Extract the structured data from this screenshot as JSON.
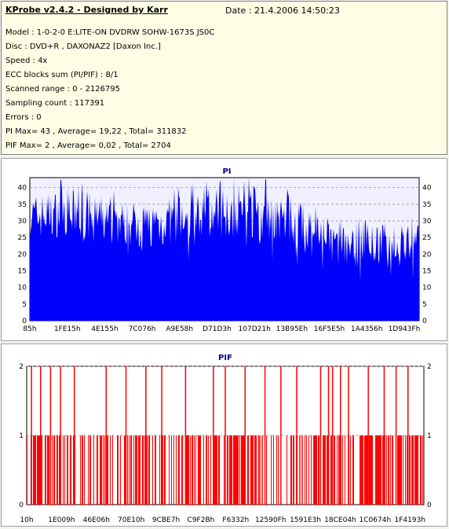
{
  "header": {
    "title": "KProbe v2.4.2 - Designed by Karr",
    "date": "Date : 21.4.2006 14:50:23",
    "lines": [
      "Model : 1-0-2-0 E:LITE-ON DVDRW SOHW-1673S JS0C",
      "Disc : DVD+R , DAXONAZ2 [Daxon Inc.]",
      "Speed : 4x",
      "ECC blocks sum (PI/PIF) : 8/1",
      "Scanned range : 0 - 2126795",
      "Sampling count : 117391",
      "Errors : 0",
      "PI Max= 43 , Average= 19,22 , Total= 311832",
      "PIF Max= 2 , Average= 0,02 , Total= 2704"
    ]
  },
  "colors": {
    "pi_fill": "#0000ff",
    "pif_fill": "#ff0000",
    "title": "#000080",
    "grid": "#8080a0",
    "plot_bg": "#f0f0ff"
  },
  "chart_data": [
    {
      "type": "area",
      "title": "PI",
      "ylim": [
        0,
        43
      ],
      "yticks": [
        0,
        5,
        10,
        15,
        20,
        25,
        30,
        35,
        40
      ],
      "grid": true,
      "xtick_labels": [
        "85h",
        "1FE15h",
        "4E155h",
        "7C076h",
        "A9E58h",
        "D71D3h",
        "107D21h",
        "13B95Eh",
        "16F5E5h",
        "1A4356h",
        "1D943Fh"
      ],
      "series": [
        {
          "x": [
            0,
            0.05,
            0.1,
            0.15,
            0.2,
            0.25,
            0.3,
            0.35,
            0.4,
            0.45,
            0.5,
            0.55,
            0.6,
            0.65,
            0.7,
            0.75,
            0.8,
            0.85,
            0.9,
            0.95,
            1.0
          ],
          "base": [
            24,
            25,
            25,
            24,
            23,
            22,
            22,
            22,
            23,
            24,
            25,
            25,
            24,
            23,
            22,
            18,
            16,
            16,
            17,
            17,
            17
          ],
          "peak": [
            38,
            39,
            40,
            39,
            37,
            36,
            36,
            37,
            38,
            39,
            41,
            41,
            40,
            38,
            36,
            32,
            29,
            28,
            29,
            29,
            29
          ]
        }
      ]
    },
    {
      "type": "bar",
      "title": "PIF",
      "ylim": [
        0,
        2
      ],
      "yticks": [
        0,
        1,
        2
      ],
      "grid": true,
      "xtick_labels": [
        "10h",
        "1E009h",
        "46E06h",
        "70E10h",
        "9CBE7h",
        "C9F2Bh",
        "F6332h",
        "12590Fh",
        "1591E3h",
        "18CE04h",
        "1C0674h",
        "1F4193h"
      ],
      "series": [
        {
          "value_one_density": 0.55,
          "value_two_positions": [
            0.012,
            0.035,
            0.06,
            0.085,
            0.12,
            0.2,
            0.25,
            0.3,
            0.34,
            0.4,
            0.47,
            0.5,
            0.55,
            0.6,
            0.64,
            0.68,
            0.74,
            0.76,
            0.77,
            0.79,
            0.81,
            0.86,
            0.9,
            0.93,
            0.96
          ]
        }
      ]
    }
  ]
}
